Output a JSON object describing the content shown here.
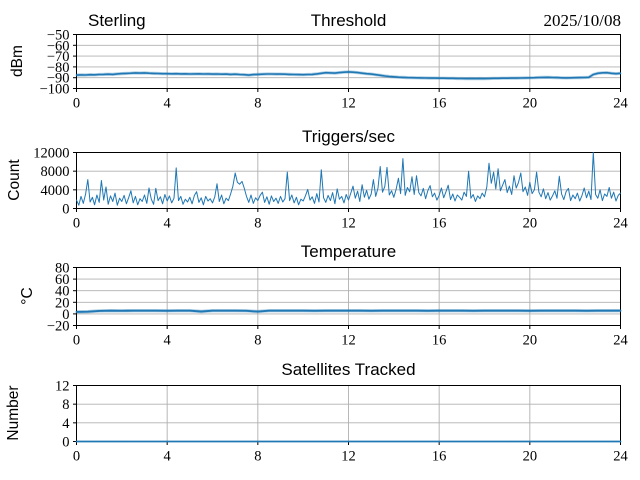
{
  "figure": {
    "background": "#ffffff",
    "accent_color": "#1f77b4",
    "grid_color": "#b0b0b0",
    "axis_color": "#000000"
  },
  "chart_data": [
    {
      "type": "line",
      "title_left": "Sterling",
      "title": "Threshold",
      "title_right": "2025/10/08",
      "ylabel": "dBm",
      "ylim": [
        -100,
        -50
      ],
      "yticks": [
        -50,
        -60,
        -70,
        -80,
        -90,
        -100
      ],
      "xlim": [
        0,
        24
      ],
      "xticks": [
        0,
        4,
        8,
        12,
        16,
        20,
        24
      ],
      "grid": true,
      "legend": "none",
      "line_color": "#1f77b4",
      "x_step": 0.2,
      "values": [
        -87.6,
        -87.4,
        -87.5,
        -87.2,
        -87.3,
        -87.0,
        -86.9,
        -86.8,
        -86.9,
        -86.5,
        -86.2,
        -86.0,
        -85.8,
        -85.6,
        -85.7,
        -85.6,
        -85.8,
        -86.0,
        -86.1,
        -86.3,
        -86.3,
        -86.4,
        -86.3,
        -86.5,
        -86.4,
        -86.6,
        -86.5,
        -86.4,
        -86.6,
        -86.5,
        -86.7,
        -86.6,
        -86.8,
        -86.7,
        -86.9,
        -86.8,
        -87.0,
        -87.2,
        -87.6,
        -87.1,
        -86.9,
        -86.8,
        -86.6,
        -86.6,
        -86.7,
        -86.7,
        -86.8,
        -86.9,
        -87.0,
        -87.1,
        -87.2,
        -87.0,
        -86.9,
        -86.5,
        -85.9,
        -85.4,
        -85.6,
        -85.7,
        -85.3,
        -84.9,
        -84.6,
        -84.9,
        -85.3,
        -85.8,
        -86.3,
        -86.7,
        -87.2,
        -87.8,
        -88.4,
        -88.9,
        -89.2,
        -89.5,
        -89.7,
        -89.9,
        -90.0,
        -90.1,
        -90.2,
        -90.3,
        -90.4,
        -90.4,
        -90.5,
        -90.5,
        -90.6,
        -90.6,
        -90.7,
        -90.7,
        -90.8,
        -90.7,
        -90.8,
        -90.7,
        -90.8,
        -90.7,
        -90.6,
        -90.6,
        -90.5,
        -90.5,
        -90.4,
        -90.4,
        -90.3,
        -90.2,
        -90.1,
        -90.0,
        -89.8,
        -89.7,
        -89.6,
        -89.8,
        -89.9,
        -90.1,
        -90.2,
        -90.1,
        -90.0,
        -89.9,
        -89.8,
        -89.6,
        -87.0,
        -85.9,
        -85.5,
        -85.4,
        -85.9,
        -86.3,
        -85.9
      ]
    },
    {
      "type": "line",
      "title": "Triggers/sec",
      "ylabel": "Count",
      "ylim": [
        0,
        12000
      ],
      "yticks": [
        12000,
        8000,
        4000,
        0
      ],
      "xlim": [
        0,
        24
      ],
      "xticks": [
        0,
        4,
        8,
        12,
        16,
        20,
        24
      ],
      "grid": true,
      "legend": "none",
      "line_color": "#1f77b4",
      "x_step": 0.1,
      "values": [
        1800,
        700,
        2600,
        1100,
        3100,
        6200,
        1400,
        2400,
        800,
        2900,
        1300,
        6000,
        1800,
        4600,
        900,
        2700,
        1500,
        3300,
        700,
        2200,
        1500,
        2800,
        1000,
        2300,
        3800,
        1200,
        2600,
        800,
        2100,
        1500,
        2900,
        1100,
        4400,
        2000,
        900,
        4300,
        1700,
        2500,
        1000,
        3000,
        1600,
        2700,
        1200,
        2200,
        8700,
        1700,
        2600,
        900,
        2000,
        1400,
        2400,
        1000,
        2800,
        3600,
        1300,
        2300,
        800,
        2600,
        1600,
        2100,
        1200,
        2500,
        5300,
        1500,
        2900,
        1000,
        2200,
        1700,
        3100,
        4800,
        7600,
        5600,
        5200,
        5800,
        4400,
        2600,
        1300,
        2900,
        1100,
        2300,
        1700,
        2800,
        3500,
        1300,
        2500,
        900,
        2700,
        1500,
        2200,
        1100,
        2600,
        1400,
        2100,
        7800,
        1700,
        2900,
        1200,
        2400,
        800,
        2000,
        1600,
        2700,
        4100,
        1800,
        2500,
        1100,
        3200,
        1400,
        8300,
        2300,
        1300,
        2800,
        1700,
        3400,
        1000,
        4200,
        2000,
        2600,
        1200,
        3000,
        1800,
        3300,
        4800,
        2200,
        3700,
        1500,
        5100,
        2400,
        3900,
        2000,
        3100,
        6200,
        2600,
        4400,
        9000,
        3500,
        4700,
        8800,
        2900,
        3800,
        2400,
        4100,
        6500,
        3200,
        10700,
        2800,
        4500,
        3600,
        6800,
        3000,
        7000,
        3400,
        2700,
        4300,
        2100,
        3800,
        4900,
        2500,
        3300,
        1800,
        2800,
        4400,
        2300,
        3600,
        5000,
        1900,
        3100,
        1600,
        2900,
        2400,
        1800,
        3500,
        2600,
        8000,
        2200,
        3000,
        1500,
        2700,
        2100,
        3300,
        2500,
        4600,
        9700,
        5400,
        7800,
        4200,
        8500,
        3800,
        5000,
        6200,
        3400,
        4800,
        3000,
        7000,
        4400,
        5600,
        7600,
        3600,
        4600,
        2800,
        5600,
        3200,
        4000,
        7800,
        3500,
        2500,
        4200,
        2100,
        3400,
        1800,
        2700,
        3800,
        2200,
        6900,
        3100,
        1900,
        3600,
        4300,
        1700,
        2900,
        2100,
        3300,
        1600,
        2800,
        4400,
        2300,
        3700,
        1900,
        12300,
        3000,
        2200,
        4000,
        1700,
        3100,
        2600,
        4500,
        2200,
        3500,
        1600,
        2800,
        3300
      ]
    },
    {
      "type": "line",
      "title": "Temperature",
      "ylabel": "°C",
      "ylim": [
        -20,
        80
      ],
      "yticks": [
        80,
        60,
        40,
        20,
        0,
        -20
      ],
      "xlim": [
        0,
        24
      ],
      "xticks": [
        0,
        4,
        8,
        12,
        16,
        20,
        24
      ],
      "grid": true,
      "legend": "none",
      "line_color": "#1f77b4",
      "x_step": 0.5,
      "values": [
        3.5,
        3.8,
        5.2,
        5.5,
        5.4,
        5.5,
        5.6,
        5.5,
        5.4,
        5.5,
        5.5,
        4.2,
        5.5,
        5.6,
        5.5,
        5.4,
        4.0,
        5.5,
        5.5,
        5.6,
        5.5,
        5.4,
        5.5,
        5.5,
        5.6,
        5.5,
        5.4,
        5.5,
        5.6,
        5.5,
        5.5,
        5.4,
        5.5,
        5.6,
        5.5,
        5.4,
        5.5,
        5.5,
        5.6,
        5.5,
        5.4,
        5.5,
        5.6,
        5.5,
        5.5,
        5.4,
        5.5,
        5.6,
        5.5
      ]
    },
    {
      "type": "line",
      "title": "Satellites Tracked",
      "ylabel": "Number",
      "ylim": [
        0,
        12
      ],
      "yticks": [
        12,
        8,
        4,
        0
      ],
      "xlim": [
        0,
        24
      ],
      "xticks": [
        0,
        4,
        8,
        12,
        16,
        20,
        24
      ],
      "grid": true,
      "legend": "none",
      "line_color": "#1f77b4",
      "x_step": 12,
      "values": [
        0,
        0,
        0
      ]
    }
  ]
}
